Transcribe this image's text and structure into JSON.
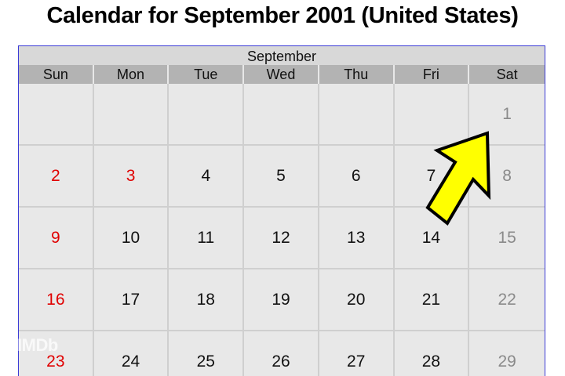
{
  "title": "Calendar for September 2001 (United States)",
  "calendar": {
    "month": "September",
    "weekdays": [
      "Sun",
      "Mon",
      "Tue",
      "Wed",
      "Thu",
      "Fri",
      "Sat"
    ],
    "cells": [
      {
        "day": "",
        "style": "normal"
      },
      {
        "day": "",
        "style": "normal"
      },
      {
        "day": "",
        "style": "normal"
      },
      {
        "day": "",
        "style": "normal"
      },
      {
        "day": "",
        "style": "normal"
      },
      {
        "day": "",
        "style": "normal"
      },
      {
        "day": "1",
        "style": "weekend"
      },
      {
        "day": "2",
        "style": "holiday"
      },
      {
        "day": "3",
        "style": "holiday"
      },
      {
        "day": "4",
        "style": "normal"
      },
      {
        "day": "5",
        "style": "normal"
      },
      {
        "day": "6",
        "style": "normal"
      },
      {
        "day": "7",
        "style": "normal"
      },
      {
        "day": "8",
        "style": "weekend"
      },
      {
        "day": "9",
        "style": "holiday"
      },
      {
        "day": "10",
        "style": "normal"
      },
      {
        "day": "11",
        "style": "normal"
      },
      {
        "day": "12",
        "style": "normal"
      },
      {
        "day": "13",
        "style": "normal"
      },
      {
        "day": "14",
        "style": "normal"
      },
      {
        "day": "15",
        "style": "weekend"
      },
      {
        "day": "16",
        "style": "holiday"
      },
      {
        "day": "17",
        "style": "normal"
      },
      {
        "day": "18",
        "style": "normal"
      },
      {
        "day": "19",
        "style": "normal"
      },
      {
        "day": "20",
        "style": "normal"
      },
      {
        "day": "21",
        "style": "normal"
      },
      {
        "day": "22",
        "style": "weekend"
      },
      {
        "day": "23",
        "style": "holiday"
      },
      {
        "day": "24",
        "style": "normal"
      },
      {
        "day": "25",
        "style": "normal"
      },
      {
        "day": "26",
        "style": "normal"
      },
      {
        "day": "27",
        "style": "normal"
      },
      {
        "day": "28",
        "style": "normal"
      },
      {
        "day": "29",
        "style": "weekend"
      }
    ]
  },
  "annotation": {
    "icon": "pointer-arrow-icon",
    "color": "#ffff00",
    "points_to_day": "7"
  },
  "watermark": "IMDb",
  "colors": {
    "holiday": "#e00000",
    "weekend": "#8a8a8a",
    "border": "#3b3bd6"
  }
}
